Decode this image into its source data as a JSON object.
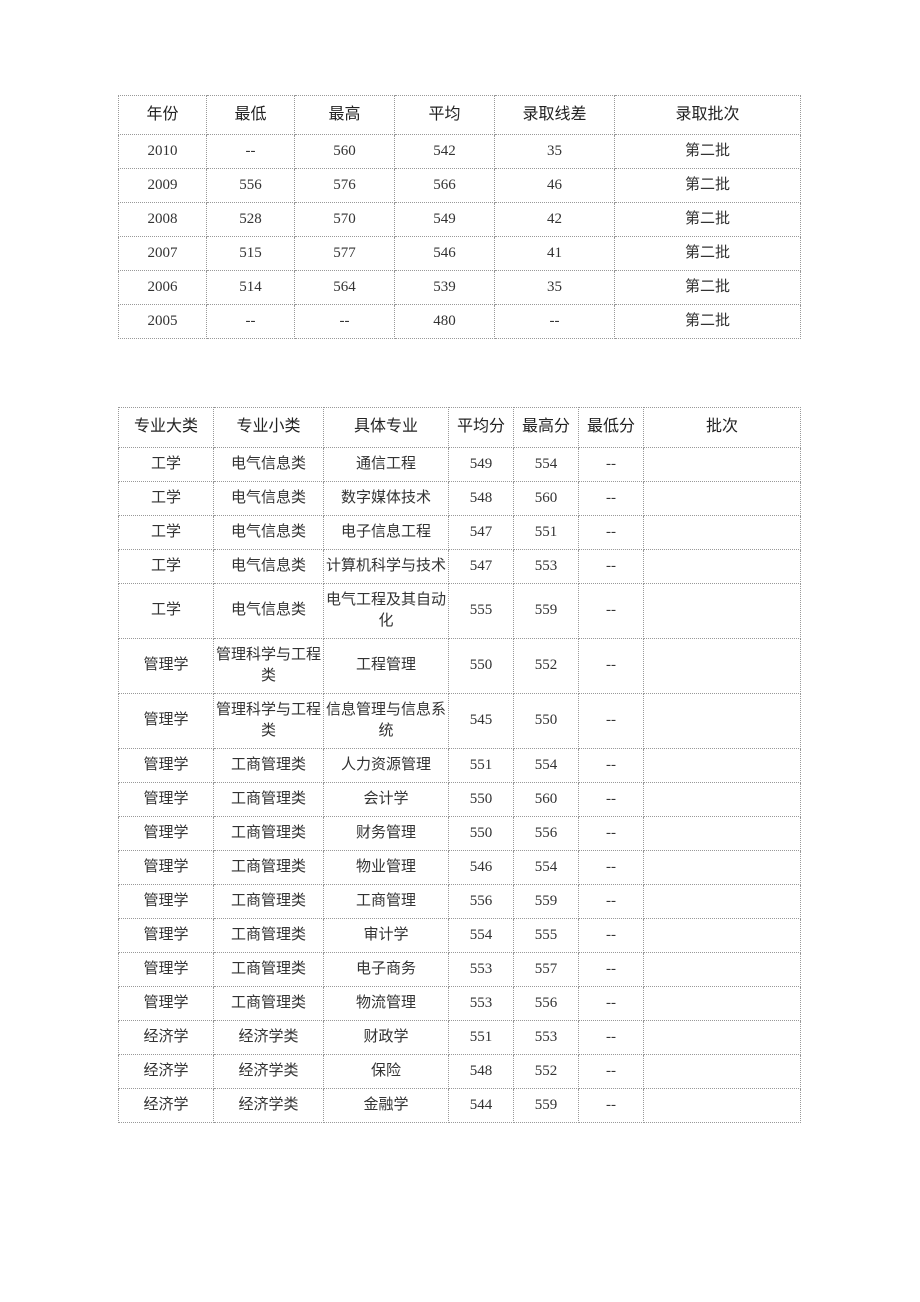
{
  "table1": {
    "headers": [
      "年份",
      "最低",
      "最高",
      "平均",
      "录取线差",
      "录取批次"
    ],
    "col_widths": [
      "88px",
      "88px",
      "100px",
      "100px",
      "120px",
      "186px"
    ],
    "rows": [
      [
        "2010",
        "--",
        "560",
        "542",
        "35",
        "第二批"
      ],
      [
        "2009",
        "556",
        "576",
        "566",
        "46",
        "第二批"
      ],
      [
        "2008",
        "528",
        "570",
        "549",
        "42",
        "第二批"
      ],
      [
        "2007",
        "515",
        "577",
        "546",
        "41",
        "第二批"
      ],
      [
        "2006",
        "514",
        "564",
        "539",
        "35",
        "第二批"
      ],
      [
        "2005",
        "--",
        "--",
        "480",
        "--",
        "第二批"
      ]
    ]
  },
  "table2": {
    "headers": [
      "专业大类",
      "专业小类",
      "具体专业",
      "平均分",
      "最高分",
      "最低分",
      "批次"
    ],
    "col_widths": [
      "95px",
      "110px",
      "125px",
      "65px",
      "65px",
      "65px",
      "157px"
    ],
    "rows": [
      [
        "工学",
        "电气信息类",
        "通信工程",
        "549",
        "554",
        "--",
        ""
      ],
      [
        "工学",
        "电气信息类",
        "数字媒体技术",
        "548",
        "560",
        "--",
        ""
      ],
      [
        "工学",
        "电气信息类",
        "电子信息工程",
        "547",
        "551",
        "--",
        ""
      ],
      [
        "工学",
        "电气信息类",
        "计算机科学与技术",
        "547",
        "553",
        "--",
        ""
      ],
      [
        "工学",
        "电气信息类",
        "电气工程及其自动化",
        "555",
        "559",
        "--",
        ""
      ],
      [
        "管理学",
        "管理科学与工程类",
        "工程管理",
        "550",
        "552",
        "--",
        ""
      ],
      [
        "管理学",
        "管理科学与工程类",
        "信息管理与信息系统",
        "545",
        "550",
        "--",
        ""
      ],
      [
        "管理学",
        "工商管理类",
        "人力资源管理",
        "551",
        "554",
        "--",
        ""
      ],
      [
        "管理学",
        "工商管理类",
        "会计学",
        "550",
        "560",
        "--",
        ""
      ],
      [
        "管理学",
        "工商管理类",
        "财务管理",
        "550",
        "556",
        "--",
        ""
      ],
      [
        "管理学",
        "工商管理类",
        "物业管理",
        "546",
        "554",
        "--",
        ""
      ],
      [
        "管理学",
        "工商管理类",
        "工商管理",
        "556",
        "559",
        "--",
        ""
      ],
      [
        "管理学",
        "工商管理类",
        "审计学",
        "554",
        "555",
        "--",
        ""
      ],
      [
        "管理学",
        "工商管理类",
        "电子商务",
        "553",
        "557",
        "--",
        ""
      ],
      [
        "管理学",
        "工商管理类",
        "物流管理",
        "553",
        "556",
        "--",
        ""
      ],
      [
        "经济学",
        "经济学类",
        "财政学",
        "551",
        "553",
        "--",
        ""
      ],
      [
        "经济学",
        "经济学类",
        "保险",
        "548",
        "552",
        "--",
        ""
      ],
      [
        "经济学",
        "经济学类",
        "金融学",
        "544",
        "559",
        "--",
        ""
      ]
    ]
  }
}
